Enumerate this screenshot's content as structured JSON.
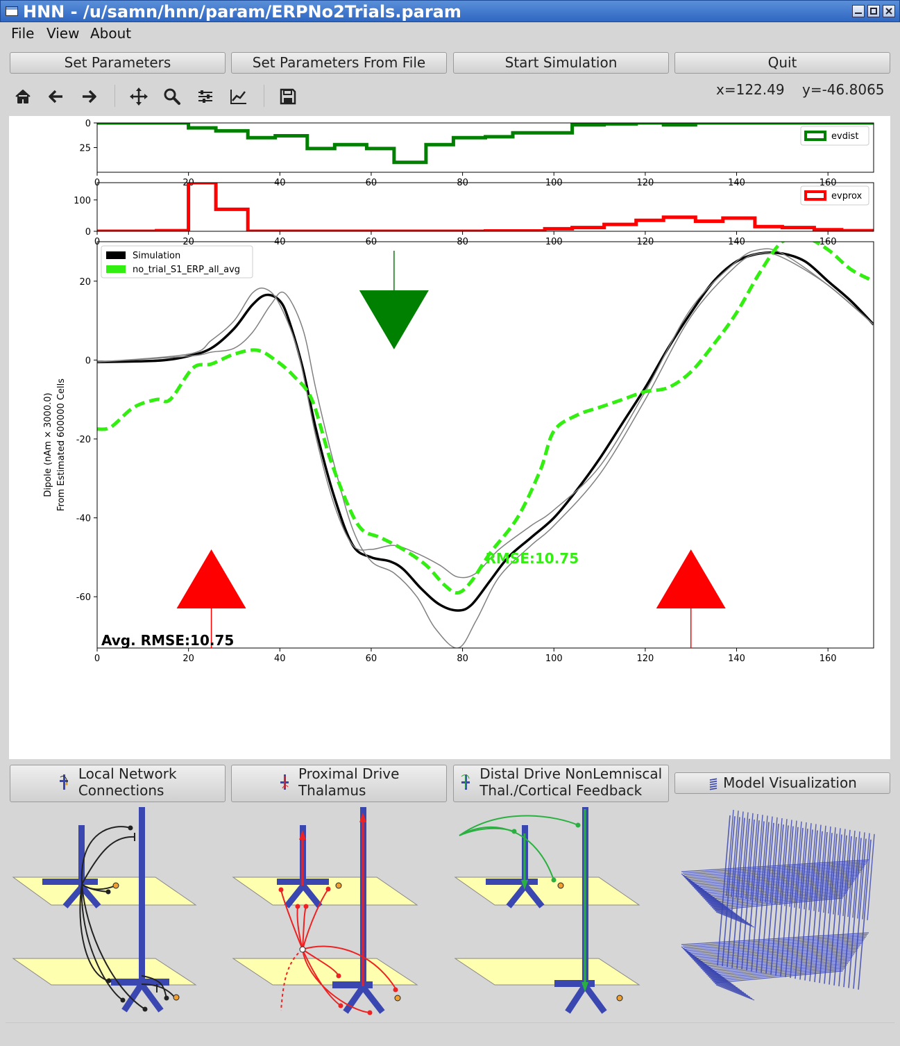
{
  "window": {
    "title": "HNN - /u/samn/hnn/param/ERPNo2Trials.param",
    "controls": [
      "minimize-icon",
      "maximize-icon",
      "close-icon"
    ]
  },
  "menu": {
    "items": [
      "File",
      "View",
      "About"
    ]
  },
  "buttons": {
    "set_parameters": "Set Parameters",
    "set_parameters_from_file": "Set Parameters From File",
    "start_simulation": "Start Simulation",
    "quit": "Quit"
  },
  "toolbar": {
    "tools": [
      "home-icon",
      "back-icon",
      "forward-icon",
      "pan-icon",
      "zoom-icon",
      "configure-subplots-icon",
      "edit-axis-icon",
      "save-icon"
    ],
    "coord_x": "x=122.49",
    "coord_y": "y=-46.8065"
  },
  "tabs": {
    "local_network": [
      "Local Network",
      "Connections"
    ],
    "proximal_drive": [
      "Proximal Drive",
      "Thalamus"
    ],
    "distal_drive": [
      "Distal Drive NonLemniscal",
      "Thal./Cortical Feedback"
    ],
    "model_visualization": "Model Visualization"
  },
  "colors": {
    "evdist": "#008000",
    "evprox": "#ff0000",
    "simulation": "#000000",
    "trial": "#808080",
    "experimental": "#33ee11",
    "titlebar": "#3a74cc"
  },
  "chart_data": [
    {
      "type": "line",
      "subtype": "step",
      "ylim": [
        0,
        50
      ],
      "y_inverted": true,
      "xlim": [
        0,
        170
      ],
      "xticks": [
        0,
        20,
        40,
        60,
        80,
        100,
        120,
        140,
        160
      ],
      "yticks": [
        0,
        25
      ],
      "legend": "top-right",
      "series": [
        {
          "name": "evdist",
          "x": [
            0,
            13,
            20,
            26,
            33,
            39,
            46,
            52,
            59,
            65,
            72,
            78,
            85,
            91,
            98,
            104,
            111,
            118,
            124,
            131,
            137,
            144,
            150,
            157,
            163,
            170
          ],
          "y": [
            0,
            0,
            5,
            8,
            15,
            13,
            26,
            22,
            26,
            40,
            22,
            15,
            14,
            10,
            10,
            2,
            1,
            0,
            2,
            0,
            0,
            0,
            0,
            0,
            0,
            0
          ]
        }
      ]
    },
    {
      "type": "line",
      "subtype": "step",
      "ylim": [
        0,
        155
      ],
      "xlim": [
        0,
        170
      ],
      "xticks": [
        0,
        20,
        40,
        60,
        80,
        100,
        120,
        140,
        160
      ],
      "yticks": [
        0,
        100
      ],
      "legend": "top-right",
      "series": [
        {
          "name": "evprox",
          "x": [
            0,
            13,
            20,
            26,
            33,
            39,
            46,
            52,
            59,
            65,
            72,
            78,
            85,
            91,
            98,
            104,
            111,
            118,
            124,
            131,
            137,
            144,
            150,
            157,
            163,
            170
          ],
          "y": [
            0,
            2,
            155,
            70,
            0,
            0,
            0,
            0,
            0,
            0,
            0,
            0,
            1,
            1,
            8,
            12,
            22,
            35,
            45,
            32,
            42,
            15,
            12,
            5,
            2,
            0
          ]
        }
      ]
    },
    {
      "type": "line",
      "xlim": [
        0,
        170
      ],
      "ylim": [
        -73,
        30
      ],
      "xticks": [
        0,
        20,
        40,
        60,
        80,
        100,
        120,
        140,
        160
      ],
      "yticks": [
        -60,
        -40,
        -20,
        0,
        20
      ],
      "ylabel": [
        "Dipole (nAm × 3000.0)",
        "From Estimated 600000 Cells"
      ],
      "legend": "top-left",
      "annotations": {
        "rmse": "RMSE:10.75",
        "avg_rmse": "Avg. RMSE:10.75"
      },
      "drive_markers": [
        {
          "type": "distal",
          "x": 65,
          "direction": "down"
        },
        {
          "type": "proximal",
          "x": 25,
          "direction": "up"
        },
        {
          "type": "proximal",
          "x": 130,
          "direction": "up"
        }
      ],
      "series": [
        {
          "name": "Simulation",
          "x": [
            0,
            10,
            15,
            20,
            25,
            30,
            34,
            37,
            40,
            42,
            45,
            48,
            52,
            56,
            60,
            64,
            67,
            71,
            75,
            79,
            82,
            86,
            90,
            95,
            100,
            105,
            110,
            115,
            120,
            125,
            130,
            135,
            140,
            145,
            150,
            155,
            160,
            165,
            170
          ],
          "y": [
            -0.5,
            -0.3,
            0,
            1,
            3,
            8,
            14,
            16.5,
            15,
            10,
            -2,
            -18,
            -35,
            -47,
            -50,
            -51,
            -53,
            -58,
            -62,
            -63.5,
            -62,
            -56,
            -50,
            -45,
            -40,
            -33,
            -25,
            -16,
            -7,
            3,
            12,
            20,
            25,
            27,
            27,
            25,
            20,
            15,
            9
          ]
        },
        {
          "name": "",
          "x": [
            0,
            20,
            25,
            30,
            34,
            37,
            40,
            44,
            48,
            52,
            56,
            60,
            65,
            70,
            75,
            79,
            83,
            88,
            95,
            100,
            110,
            120,
            130,
            140,
            145,
            150,
            160,
            170
          ],
          "y": [
            -0.5,
            1.5,
            5,
            10,
            17,
            18,
            14,
            2,
            -20,
            -37,
            -47,
            -48,
            -47,
            -49,
            -52,
            -55,
            -54,
            -48,
            -42,
            -38,
            -27,
            -8,
            13,
            25,
            28,
            27,
            19,
            9
          ]
        },
        {
          "name": "",
          "x": [
            0,
            20,
            25,
            30,
            34,
            38,
            41,
            45,
            48,
            52,
            56,
            60,
            65,
            70,
            74,
            79,
            83,
            88,
            95,
            100,
            110,
            120,
            130,
            140,
            145,
            150,
            160,
            170
          ],
          "y": [
            -0.5,
            1,
            2,
            3,
            7,
            14,
            17,
            8,
            -8,
            -27,
            -43,
            -51,
            -54,
            -60,
            -68,
            -73,
            -66,
            -55,
            -47,
            -42,
            -29,
            -10,
            11,
            24,
            27,
            26,
            19,
            9
          ]
        },
        {
          "name": "no_trial_S1_ERP_all_avg",
          "x": [
            0,
            3,
            8,
            13,
            16,
            21,
            25,
            30,
            35,
            39,
            43,
            47,
            51,
            55,
            58,
            62,
            67,
            72,
            76,
            79,
            82,
            86,
            92,
            97,
            100,
            105,
            110,
            115,
            120,
            125,
            130,
            135,
            140,
            145,
            150,
            155,
            160,
            165,
            170
          ],
          "y": [
            -17.5,
            -17,
            -12,
            -10,
            -10,
            -2,
            -1,
            1.5,
            2.5,
            0,
            -4,
            -10,
            -25,
            -37,
            -43,
            -45,
            -48,
            -52,
            -57,
            -59,
            -56,
            -49,
            -40,
            -28,
            -18,
            -14,
            -12,
            -10,
            -8,
            -7,
            -3,
            4,
            12,
            22,
            30,
            31,
            28,
            23,
            20
          ]
        }
      ]
    }
  ]
}
